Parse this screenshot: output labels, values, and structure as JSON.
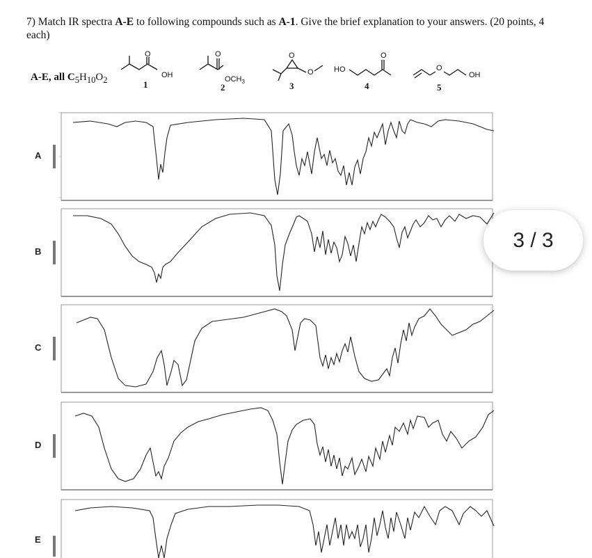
{
  "question": {
    "part1": "7) Match IR spectra ",
    "bold1": "A-E",
    "part2": " to following compounds such as ",
    "bold2": "A-1",
    "part3": ". Give the brief explanation to your answers. (20 points, 4 each)"
  },
  "formula": {
    "label": "A-E, all C",
    "c_sub": "5",
    "h": "H",
    "h_sub": "10",
    "o": "O",
    "o_sub": "2"
  },
  "compounds": [
    {
      "number": "1",
      "label": "OH",
      "carbonyl": "O"
    },
    {
      "number": "2",
      "label": "OCH",
      "label_sub": "3",
      "carbonyl": "O"
    },
    {
      "number": "3",
      "ring_o": "O",
      "ether_o": "O"
    },
    {
      "number": "4",
      "label": "HO",
      "carbonyl": "O"
    },
    {
      "number": "5",
      "label": "OH",
      "ether_o": "O"
    }
  ],
  "spectra": [
    {
      "letter": "A"
    },
    {
      "letter": "B"
    },
    {
      "letter": "C"
    },
    {
      "letter": "D"
    },
    {
      "letter": "E"
    }
  ],
  "pager": {
    "text": "3 / 3"
  }
}
